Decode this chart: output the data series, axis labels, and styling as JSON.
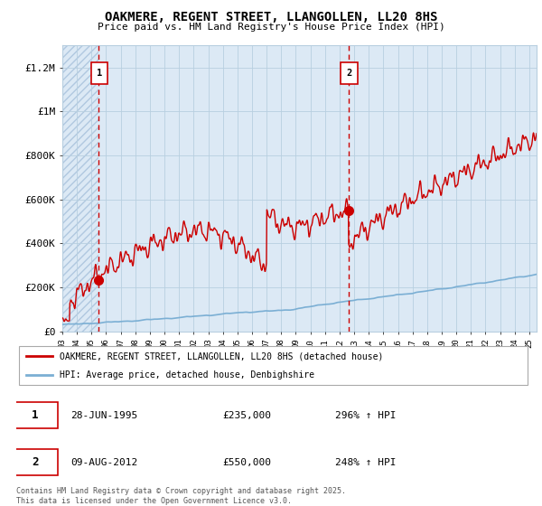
{
  "title": "OAKMERE, REGENT STREET, LLANGOLLEN, LL20 8HS",
  "subtitle": "Price paid vs. HM Land Registry's House Price Index (HPI)",
  "ylim": [
    0,
    1300000
  ],
  "yticks": [
    0,
    200000,
    400000,
    600000,
    800000,
    1000000,
    1200000
  ],
  "ytick_labels": [
    "£0",
    "£200K",
    "£400K",
    "£600K",
    "£800K",
    "£1M",
    "£1.2M"
  ],
  "sale1_date": 1995.49,
  "sale1_price": 235000,
  "sale2_date": 2012.61,
  "sale2_price": 550000,
  "property_color": "#cc0000",
  "hpi_color": "#7bafd4",
  "bg_color": "#dce9f5",
  "hatch_color": "#b0c8e0",
  "grid_color": "#b8cfe0",
  "vline_color": "#cc0000",
  "legend_property": "OAKMERE, REGENT STREET, LLANGOLLEN, LL20 8HS (detached house)",
  "legend_hpi": "HPI: Average price, detached house, Denbighshire",
  "annotation1_date": "28-JUN-1995",
  "annotation1_price": "£235,000",
  "annotation1_hpi": "296% ↑ HPI",
  "annotation2_date": "09-AUG-2012",
  "annotation2_price": "£550,000",
  "annotation2_hpi": "248% ↑ HPI",
  "footer": "Contains HM Land Registry data © Crown copyright and database right 2025.\nThis data is licensed under the Open Government Licence v3.0."
}
